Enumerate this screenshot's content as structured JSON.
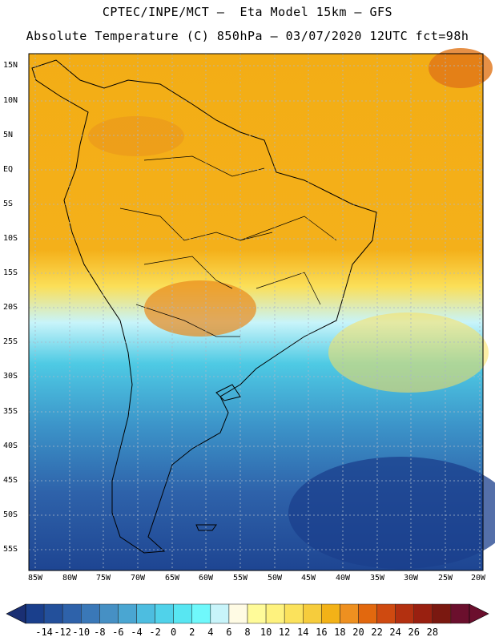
{
  "header": {
    "line1": "CPTEC/INPE/MCT –  Eta Model 15km – GFS",
    "line2": "Absolute Temperature (C) 850hPa – 03/07/2020 12UTC fct=98h"
  },
  "map": {
    "lat_labels": [
      "15N",
      "10N",
      "5N",
      "EQ",
      "5S",
      "10S",
      "15S",
      "20S",
      "25S",
      "30S",
      "35S",
      "40S",
      "45S",
      "50S",
      "55S"
    ],
    "lon_labels": [
      "85W",
      "80W",
      "75W",
      "70W",
      "65W",
      "60W",
      "55W",
      "50W",
      "45W",
      "40W",
      "35W",
      "30W",
      "25W",
      "20W"
    ],
    "grid": true,
    "background_color": "#f2ac14"
  },
  "colorbar": {
    "labels": [
      "-14",
      "-12",
      "-10",
      "-8",
      "-6",
      "-4",
      "-2",
      "0",
      "2",
      "4",
      "6",
      "8",
      "10",
      "12",
      "14",
      "16",
      "18",
      "20",
      "22",
      "24",
      "26",
      "28"
    ],
    "colors": [
      "#1a3f8c",
      "#23509b",
      "#2e62aa",
      "#3a78b8",
      "#4690c4",
      "#4aa6d2",
      "#4dbde0",
      "#50d2ea",
      "#58e6f2",
      "#6ff8fb",
      "#c8f4fa",
      "#fffbe4",
      "#fffb99",
      "#fef27e",
      "#fbe25c",
      "#f6cc3c",
      "#f3b217",
      "#ee9020",
      "#e2680e",
      "#cf4a10",
      "#b33010",
      "#992010",
      "#7a1810",
      "#6b0f2d"
    ]
  }
}
